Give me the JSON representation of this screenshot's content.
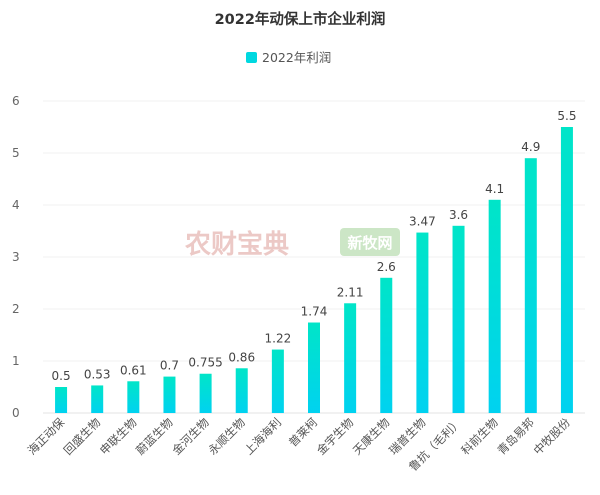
{
  "chart_data": {
    "type": "bar",
    "title": "2022年动保上市企业利润",
    "legend": [
      "2022年利润"
    ],
    "legend_position": "top-center",
    "xlabel": "",
    "ylabel": "",
    "ylim": [
      0,
      6
    ],
    "yticks": [
      0,
      1,
      2,
      3,
      4,
      5,
      6
    ],
    "grid": true,
    "categories": [
      "海正动保",
      "回盛生物",
      "申联生物",
      "蔚蓝生物",
      "金河生物",
      "永顺生物",
      "上海海利",
      "普莱柯",
      "金宇生物",
      "天康生物",
      "瑞普生物",
      "鲁抗（毛利）",
      "科前生物",
      "青岛易邦",
      "中牧股份"
    ],
    "series": [
      {
        "name": "2022年利润",
        "values": [
          0.5,
          0.53,
          0.61,
          0.7,
          0.755,
          0.86,
          1.22,
          1.74,
          2.11,
          2.6,
          3.47,
          3.6,
          4.1,
          4.9,
          5.5
        ]
      }
    ],
    "data_labels": [
      "0.5",
      "0.53",
      "0.61",
      "0.7",
      "0.755",
      "0.86",
      "1.22",
      "1.74",
      "2.11",
      "2.6",
      "3.47",
      "3.6",
      "4.1",
      "4.9",
      "5.5"
    ],
    "colors": {
      "bar_top": "#00e5c8",
      "bar_bottom": "#00d2f0",
      "legend": "#00d8e0"
    }
  },
  "watermarks": {
    "left": "农财宝典",
    "right": "新牧网"
  }
}
